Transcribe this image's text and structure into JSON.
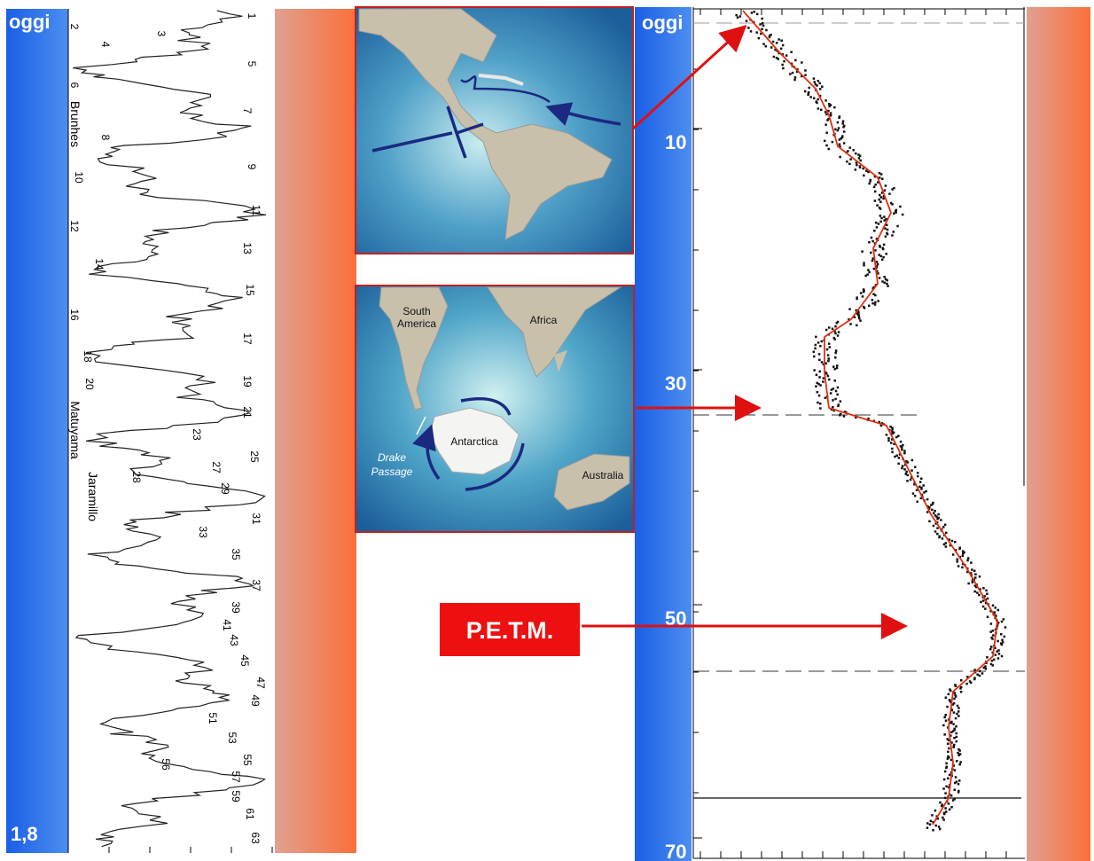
{
  "left_panel": {
    "top": "oggi",
    "bottom": "1,8",
    "stages": [
      "1",
      "2",
      "3",
      "4",
      "5",
      "6",
      "7",
      "8",
      "9",
      "10",
      "11",
      "12",
      "13",
      "14",
      "15",
      "16",
      "17",
      "18",
      "19",
      "20",
      "21",
      "23",
      "25",
      "27",
      "28",
      "29",
      "31",
      "33",
      "35",
      "37",
      "39",
      "41",
      "43",
      "45",
      "47",
      "49",
      "51",
      "53",
      "55",
      "56",
      "57",
      "59",
      "61",
      "63"
    ],
    "epochs": [
      "Brunhes",
      "Matuyama",
      "Jaramillo"
    ]
  },
  "maps": {
    "south_america": "South America",
    "africa": "Africa",
    "antarctica": "Antarctica",
    "drake": "Drake Passage",
    "australia": "Australia"
  },
  "petm": "P.E.T.M.",
  "right_panel": {
    "top": "oggi",
    "ticks": [
      "10",
      "30",
      "50",
      "70"
    ]
  }
}
